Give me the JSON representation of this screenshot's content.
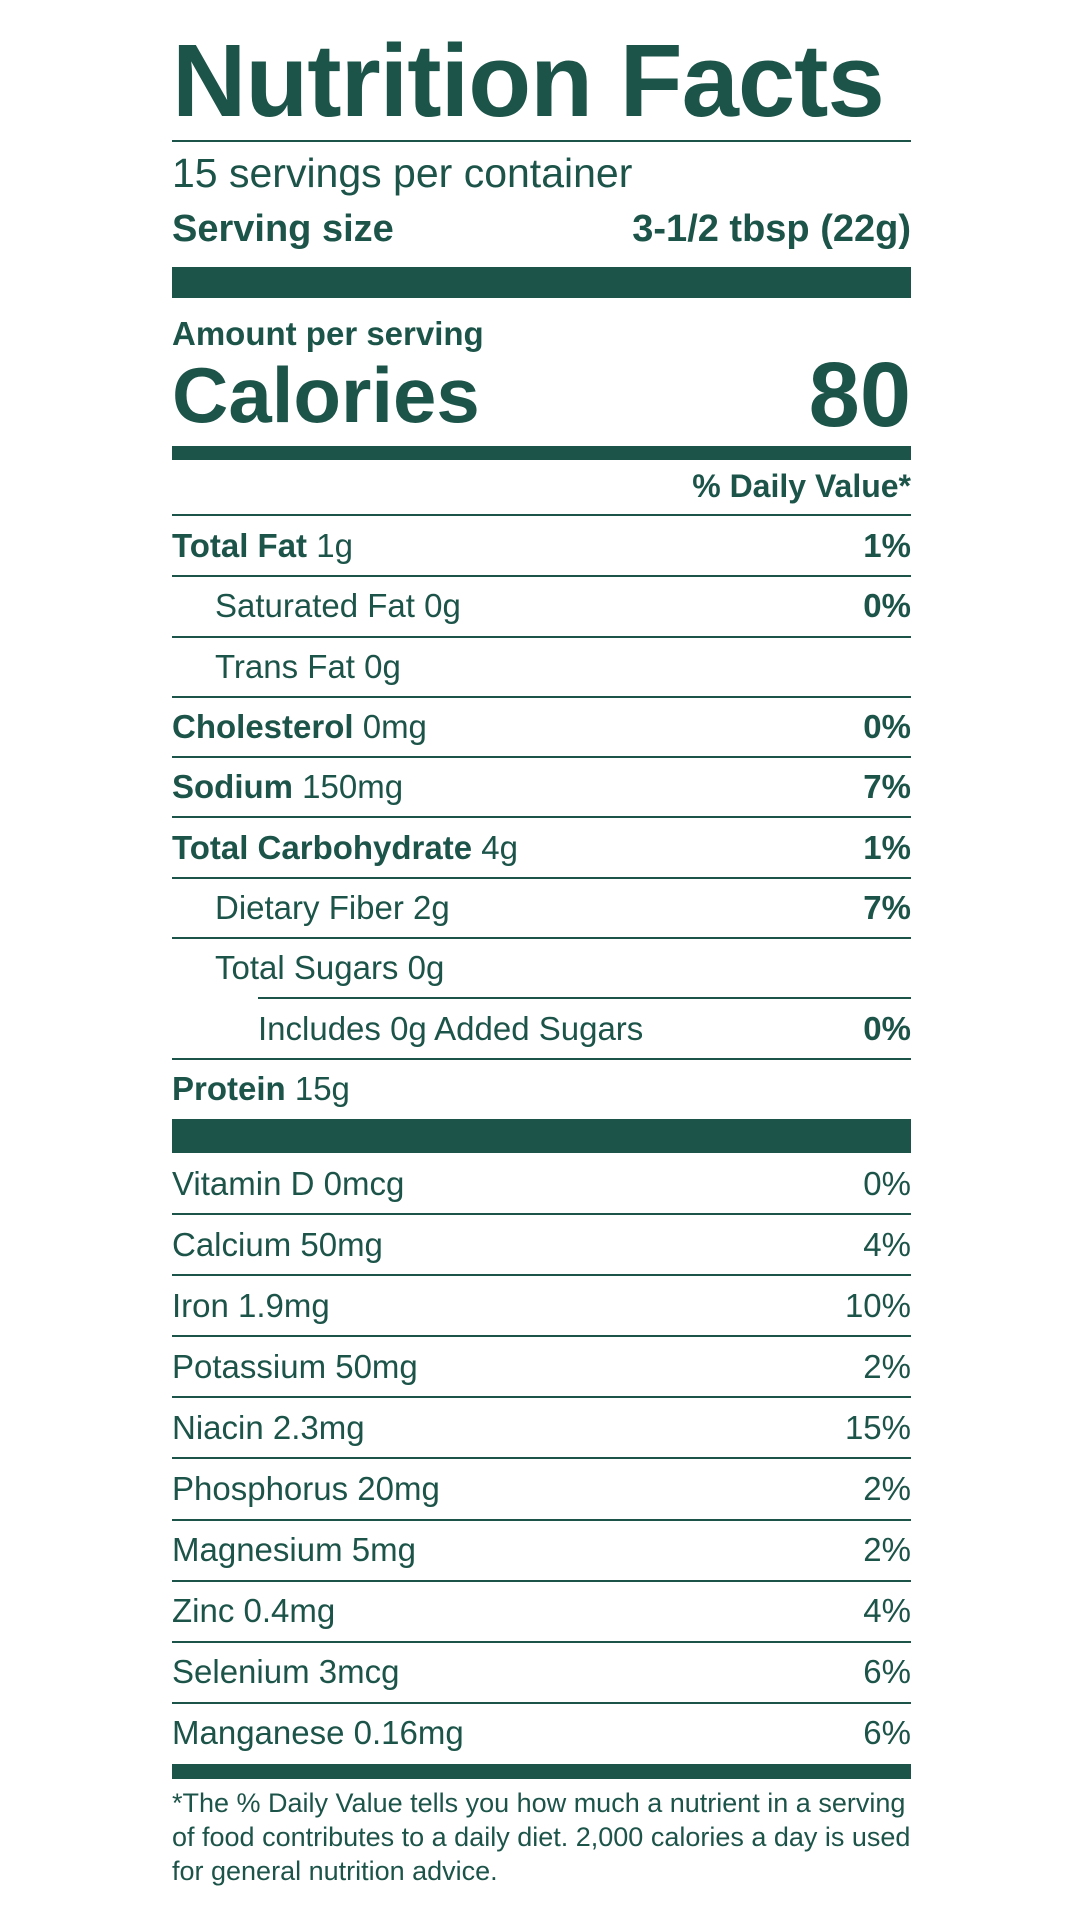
{
  "title": "Nutrition Facts",
  "servings_per_container": "15 servings per container",
  "serving_size": {
    "label": "Serving size",
    "value": "3-1/2 tbsp (22g)"
  },
  "amount_per_serving": "Amount per serving",
  "calories": {
    "label": "Calories",
    "value": "80"
  },
  "daily_value_header": "% Daily Value*",
  "nutrients": [
    {
      "bold": "Total Fat",
      "amount": " 1g",
      "dv": "1%",
      "indent": 0
    },
    {
      "bold": "",
      "amount": "Saturated Fat 0g",
      "dv": "0%",
      "indent": 1
    },
    {
      "bold": "",
      "amount": "Trans Fat 0g",
      "dv": "",
      "indent": 1
    },
    {
      "bold": "Cholesterol",
      "amount": " 0mg",
      "dv": "0%",
      "indent": 0
    },
    {
      "bold": "Sodium",
      "amount": " 150mg",
      "dv": "7%",
      "indent": 0
    },
    {
      "bold": "Total Carbohydrate",
      "amount": " 4g",
      "dv": "1%",
      "indent": 0
    },
    {
      "bold": "",
      "amount": "Dietary Fiber 2g",
      "dv": "7%",
      "indent": 1
    },
    {
      "bold": "",
      "amount": "Total Sugars 0g",
      "dv": "",
      "indent": 1
    },
    {
      "bold": "",
      "amount": "Includes 0g Added Sugars",
      "dv": "0%",
      "indent": 2
    },
    {
      "bold": "Protein",
      "amount": " 15g",
      "dv": "",
      "indent": 0
    }
  ],
  "vitamins": [
    {
      "name": "Vitamin D 0mcg",
      "dv": "0%"
    },
    {
      "name": "Calcium 50mg",
      "dv": "4%"
    },
    {
      "name": "Iron 1.9mg",
      "dv": "10%"
    },
    {
      "name": "Potassium 50mg",
      "dv": "2%"
    },
    {
      "name": "Niacin 2.3mg",
      "dv": "15%"
    },
    {
      "name": "Phosphorus 20mg",
      "dv": "2%"
    },
    {
      "name": "Magnesium 5mg",
      "dv": "2%"
    },
    {
      "name": "Zinc 0.4mg",
      "dv": "4%"
    },
    {
      "name": "Selenium 3mcg",
      "dv": "6%"
    },
    {
      "name": "Manganese 0.16mg",
      "dv": "6%"
    }
  ],
  "footnote": "*The % Daily Value tells you how much a nutrient in a serving of food contributes to a daily diet. 2,000 calories a day is used for general nutrition advice.",
  "colors": {
    "ink": "#1d5449",
    "background": "#ffffff"
  }
}
